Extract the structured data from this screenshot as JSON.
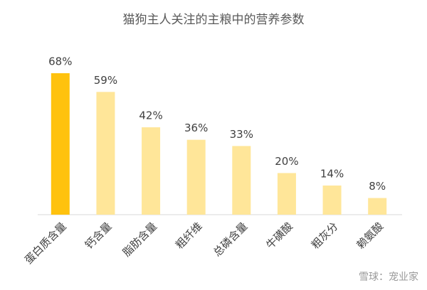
{
  "chart_data": {
    "type": "bar",
    "title": "猫狗主人关注的主粮中的营养参数",
    "categories": [
      "蛋白质含量",
      "钙含量",
      "脂肪含量",
      "粗纤维",
      "总磷含量",
      "牛磺酸",
      "粗灰分",
      "赖氨酸"
    ],
    "values": [
      68,
      59,
      42,
      36,
      33,
      20,
      14,
      8
    ],
    "value_labels": [
      "68%",
      "59%",
      "42%",
      "36%",
      "33%",
      "20%",
      "14%",
      "8%"
    ],
    "colors": [
      "#ffc20e",
      "#ffe699",
      "#ffe699",
      "#ffe699",
      "#ffe699",
      "#ffe699",
      "#ffe699",
      "#ffe699"
    ],
    "watermark": "雪球：宠业家"
  }
}
